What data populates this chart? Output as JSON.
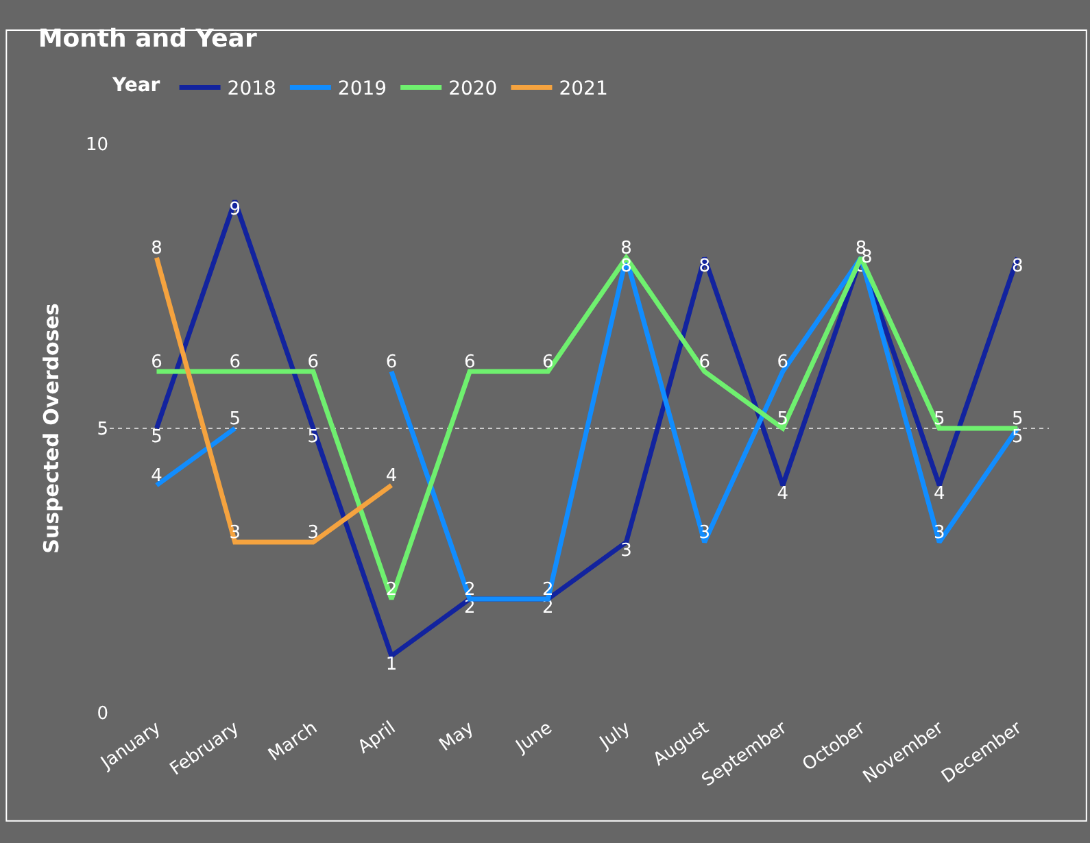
{
  "chart_data": {
    "type": "line",
    "title": "Month and Year",
    "ylabel": "Suspected Overdoses",
    "legend_title": "Year",
    "categories": [
      "January",
      "February",
      "March",
      "April",
      "May",
      "June",
      "July",
      "August",
      "September",
      "October",
      "November",
      "December"
    ],
    "series": [
      {
        "name": "2018",
        "color": "#12239e",
        "values": [
          5,
          9,
          5,
          1,
          2,
          2,
          3,
          8,
          4,
          8,
          4,
          8
        ]
      },
      {
        "name": "2019",
        "color": "#118dff",
        "values": [
          4,
          5,
          null,
          6,
          2,
          2,
          8,
          3,
          6,
          8,
          3,
          5
        ]
      },
      {
        "name": "2020",
        "color": "#6ff06f",
        "values": [
          6,
          6,
          6,
          2,
          6,
          6,
          8,
          6,
          5,
          8,
          5,
          5
        ]
      },
      {
        "name": "2021",
        "color": "#f5a33f",
        "values": [
          8,
          3,
          3,
          4,
          null,
          null,
          null,
          null,
          null,
          null,
          null,
          null
        ]
      }
    ],
    "ylim": [
      0,
      10
    ],
    "yticks": [
      0,
      5,
      10
    ],
    "grid": "y",
    "legend": "top left",
    "marker": "none",
    "line_style": "solid",
    "data_labels": true
  }
}
